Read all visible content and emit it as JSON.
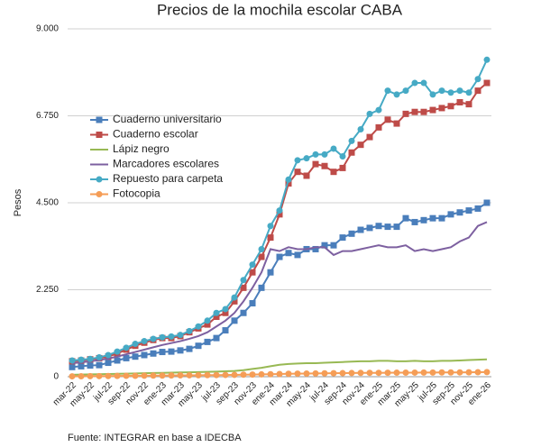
{
  "chart_data": {
    "type": "line",
    "title": "Precios de la mochila escolar CABA",
    "y_label": "Pesos",
    "source": "Fuente: INTEGRAR en base a IDECBA",
    "categories": [
      "mar-22",
      null,
      "may-22",
      null,
      "jul-22",
      null,
      "sep-22",
      null,
      "nov-22",
      null,
      "ene-23",
      null,
      "mar-23",
      null,
      "may-23",
      null,
      "jul-23",
      null,
      "sep-23",
      null,
      "nov-23",
      null,
      "ene-24",
      null,
      "mar-24",
      null,
      "may-24",
      null,
      "jul-24",
      null,
      "sep-24",
      null,
      "nov-24",
      null,
      "ene-25",
      null,
      "mar-25",
      null,
      "may-25",
      null,
      "jul-25",
      null,
      "sep-25",
      null,
      "nov-25",
      null,
      "ene-26"
    ],
    "ylim": [
      0,
      9000
    ],
    "yticks": [
      0,
      {
        "value": 2250,
        "label": "2.250"
      },
      {
        "value": 4500,
        "label": "4.500"
      },
      {
        "value": 6750,
        "label": "6.750"
      },
      {
        "value": 9000,
        "label": "9.000"
      }
    ],
    "grid": true,
    "series": [
      {
        "name": "Cuaderno universitario",
        "color": "#4a7ebb",
        "marker": "square",
        "values": [
          250,
          270,
          290,
          300,
          360,
          420,
          480,
          520,
          560,
          600,
          640,
          650,
          680,
          720,
          800,
          900,
          1000,
          1200,
          1450,
          1650,
          1900,
          2300,
          2700,
          3100,
          3200,
          3150,
          3300,
          3300,
          3400,
          3400,
          3600,
          3700,
          3800,
          3850,
          3900,
          3880,
          3880,
          4100,
          4000,
          4050,
          4100,
          4100,
          4200,
          4250,
          4300,
          4350,
          4500
        ]
      },
      {
        "name": "Cuaderno escolar",
        "color": "#be4b48",
        "marker": "square",
        "values": [
          400,
          420,
          450,
          480,
          520,
          600,
          700,
          800,
          880,
          950,
          1000,
          1000,
          1050,
          1150,
          1250,
          1350,
          1550,
          1650,
          1950,
          2300,
          2700,
          3100,
          3600,
          4200,
          5000,
          5300,
          5200,
          5500,
          5450,
          5300,
          5400,
          5800,
          6000,
          6200,
          6450,
          6650,
          6550,
          6800,
          6850,
          6850,
          6900,
          6950,
          7000,
          7100,
          7050,
          7400,
          7600
        ]
      },
      {
        "name": "Lápiz negro",
        "color": "#98b954",
        "marker": "none",
        "values": [
          50,
          55,
          60,
          65,
          70,
          75,
          80,
          85,
          90,
          95,
          100,
          105,
          110,
          115,
          120,
          125,
          130,
          140,
          150,
          170,
          200,
          230,
          270,
          310,
          330,
          340,
          350,
          350,
          360,
          370,
          380,
          390,
          400,
          400,
          410,
          410,
          400,
          400,
          410,
          400,
          400,
          410,
          410,
          420,
          430,
          440,
          450
        ]
      },
      {
        "name": "Marcadores escolares",
        "color": "#7d60a0",
        "marker": "none",
        "values": [
          350,
          370,
          400,
          430,
          470,
          520,
          580,
          640,
          700,
          760,
          820,
          870,
          920,
          980,
          1050,
          1150,
          1300,
          1450,
          1650,
          1950,
          2300,
          2700,
          3300,
          3250,
          3350,
          3300,
          3300,
          3350,
          3350,
          3150,
          3250,
          3250,
          3300,
          3350,
          3400,
          3350,
          3350,
          3400,
          3250,
          3300,
          3250,
          3300,
          3350,
          3500,
          3600,
          3900,
          4000
        ]
      },
      {
        "name": "Repuesto para carpeta",
        "color": "#46aac5",
        "marker": "circle",
        "values": [
          420,
          440,
          460,
          500,
          560,
          650,
          750,
          850,
          920,
          980,
          1020,
          1040,
          1080,
          1180,
          1300,
          1450,
          1650,
          1750,
          2050,
          2500,
          2900,
          3300,
          3900,
          4300,
          5100,
          5600,
          5650,
          5750,
          5750,
          5900,
          5700,
          6100,
          6400,
          6800,
          6900,
          7400,
          7300,
          7400,
          7600,
          7600,
          7300,
          7400,
          7350,
          7400,
          7350,
          7700,
          8200
        ]
      },
      {
        "name": "Fotocopia",
        "color": "#f59d56",
        "marker": "circle",
        "values": [
          10,
          12,
          14,
          16,
          18,
          20,
          22,
          24,
          26,
          28,
          30,
          32,
          34,
          36,
          38,
          40,
          42,
          45,
          48,
          52,
          56,
          60,
          65,
          70,
          75,
          80,
          82,
          85,
          88,
          90,
          92,
          95,
          98,
          100,
          100,
          102,
          104,
          105,
          106,
          107,
          108,
          110,
          110,
          112,
          114,
          116,
          120
        ]
      }
    ]
  }
}
